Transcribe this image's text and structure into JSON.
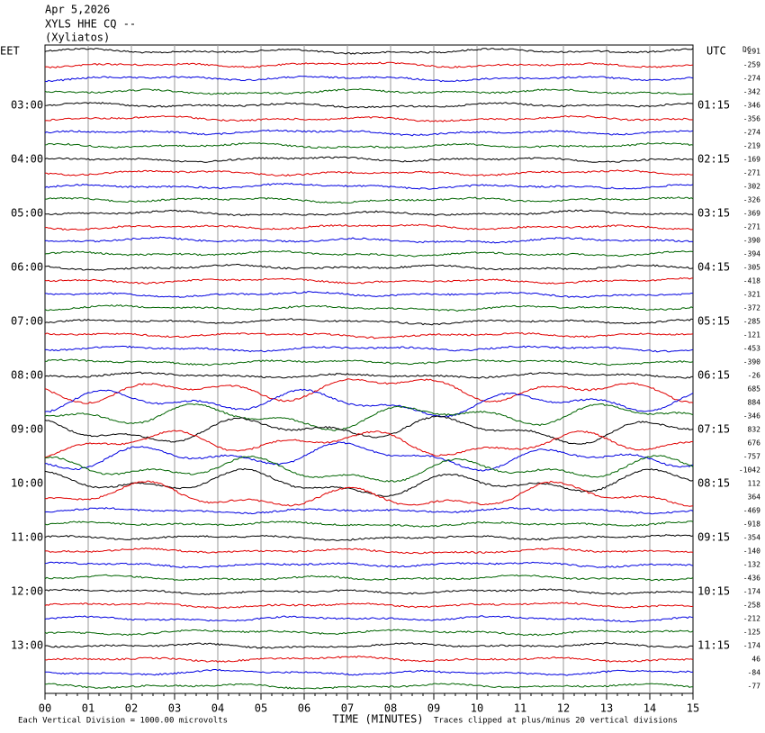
{
  "header": {
    "date": "Apr 5,2026",
    "station": "XYLS HHE CQ --",
    "location": "(Xyliatos)"
  },
  "left_axis": {
    "title": "EET",
    "labels": [
      "03:00",
      "04:00",
      "05:00",
      "06:00",
      "07:00",
      "08:00",
      "09:00",
      "10:00",
      "11:00",
      "12:00",
      "13:00"
    ]
  },
  "right_axis": {
    "title": "UTC",
    "labels": [
      "01:15",
      "02:15",
      "03:15",
      "04:15",
      "05:15",
      "06:15",
      "07:15",
      "08:15",
      "09:15",
      "10:15",
      "11:15"
    ]
  },
  "dc_offsets": {
    "title": "DC",
    "values": [
      -291,
      -259,
      -274,
      -342,
      -346,
      -356,
      -274,
      -219,
      -169,
      -271,
      -302,
      -326,
      -369,
      -271,
      -390,
      -394,
      -305,
      -418,
      -321,
      -372,
      -285,
      -121,
      -453,
      -390,
      -26,
      685,
      884,
      -346,
      832,
      676,
      -757,
      -1042,
      112,
      364,
      -469,
      -918,
      -354,
      -140,
      -132,
      -436,
      -174,
      -258,
      -212,
      -125,
      -174,
      46,
      -84,
      -77
    ]
  },
  "x_axis": {
    "title": "TIME (MINUTES)",
    "ticks": [
      "00",
      "01",
      "02",
      "03",
      "04",
      "05",
      "06",
      "07",
      "08",
      "09",
      "10",
      "11",
      "12",
      "13",
      "14",
      "15"
    ]
  },
  "footer": {
    "scale_note": "Each Vertical Division = 1000.00 microvolts",
    "clip_note": "Traces clipped at plus/minus 20 vertical divisions"
  },
  "trace_colors": [
    "#000000",
    "#e00000",
    "#0000e0",
    "#006400"
  ]
}
